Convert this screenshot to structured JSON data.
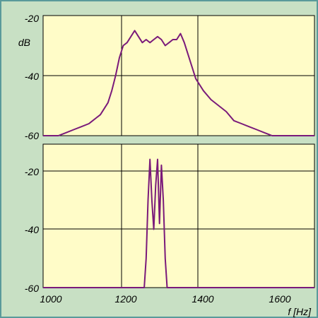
{
  "colors": {
    "frame_background": "#c8e0c4",
    "plot_background": "#fffcc8",
    "line": "#7a1a7a",
    "grid": "#000000",
    "frame_border": "#5a9a9a"
  },
  "chart_data": [
    {
      "type": "line",
      "ylabel": "dB",
      "xlim": [
        1000,
        1760
      ],
      "ylim": [
        -60,
        -20
      ],
      "y_ticks": [
        "-20",
        "-40",
        "-60"
      ],
      "grid": true,
      "series": [
        {
          "x": [
            1000,
            1040,
            1060,
            1080,
            1100,
            1120,
            1140,
            1150,
            1160,
            1170,
            1180,
            1190,
            1200,
            1210,
            1220,
            1230,
            1240,
            1250,
            1260,
            1270,
            1280,
            1290,
            1300,
            1310,
            1320,
            1330,
            1340,
            1350,
            1360,
            1370,
            1380,
            1390,
            1400,
            1420,
            1440,
            1460,
            1480,
            1500,
            1520,
            1540,
            1560,
            1580,
            1600,
            1620,
            1640,
            1760
          ],
          "y": [
            -60,
            -60,
            -59,
            -58,
            -57,
            -56,
            -54,
            -53,
            -51,
            -49,
            -45,
            -40,
            -34,
            -30,
            -29,
            -27,
            -25,
            -27,
            -29,
            -28,
            -29,
            -28,
            -27,
            -28,
            -30,
            -29,
            -28,
            -28,
            -26,
            -29,
            -33,
            -37,
            -41,
            -45,
            -48,
            -50,
            -52,
            -55,
            -56,
            -57,
            -58,
            -59,
            -60,
            -60,
            -60,
            -60
          ]
        }
      ]
    },
    {
      "type": "line",
      "xlabel": "f [Hz]",
      "xlim": [
        1000,
        1760
      ],
      "ylim": [
        -60,
        -15
      ],
      "x_ticks": [
        "1000",
        "1200",
        "1400",
        "1600"
      ],
      "y_ticks": [
        "-20",
        "-40",
        "-60"
      ],
      "grid": true,
      "series": [
        {
          "x": [
            1000,
            1265,
            1270,
            1275,
            1280,
            1285,
            1290,
            1295,
            1300,
            1305,
            1310,
            1315,
            1320,
            1325,
            1760
          ],
          "y": [
            -60,
            -60,
            -50,
            -30,
            -16,
            -30,
            -40,
            -25,
            -16,
            -38,
            -18,
            -30,
            -50,
            -60,
            -60
          ]
        }
      ]
    }
  ]
}
